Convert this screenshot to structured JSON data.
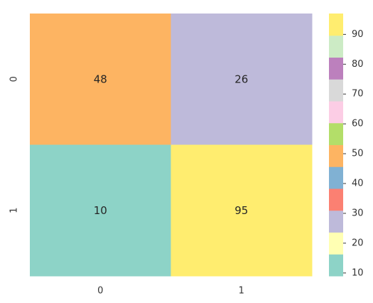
{
  "chart_data": {
    "type": "heatmap",
    "x_categories": [
      "0",
      "1"
    ],
    "y_categories": [
      "0",
      "1"
    ],
    "values": [
      [
        48,
        26
      ],
      [
        10,
        95
      ]
    ],
    "colorbar": {
      "min": 9,
      "max": 97,
      "ticks": [
        "10",
        "20",
        "30",
        "40",
        "50",
        "60",
        "70",
        "80",
        "90"
      ],
      "tick_values": [
        10,
        20,
        30,
        40,
        50,
        60,
        70,
        80,
        90
      ],
      "colors": [
        "#8dd3c7",
        "#ffffb3",
        "#bebada",
        "#fb8072",
        "#80b1d3",
        "#fdb462",
        "#b3de69",
        "#fccde5",
        "#d9d9d9",
        "#bc80bd",
        "#ccebc5",
        "#ffed6f"
      ]
    },
    "title": "",
    "xlabel": "",
    "ylabel": ""
  }
}
